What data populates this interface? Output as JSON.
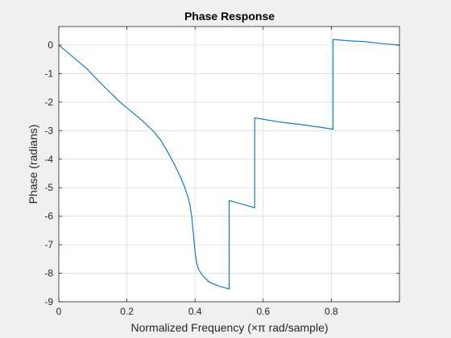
{
  "chart_data": {
    "type": "line",
    "title": "Phase Response",
    "xlabel": "Normalized Frequency (×π rad/sample)",
    "ylabel": "Phase (radians)",
    "xlim": [
      0,
      1
    ],
    "ylim": [
      -9,
      0.65
    ],
    "grid": true,
    "x_ticks": [
      "0",
      "0.2",
      "0.4",
      "0.6",
      "0.8"
    ],
    "x_tick_values": [
      0,
      0.2,
      0.4,
      0.6,
      0.8
    ],
    "y_ticks": [
      "0",
      "-1",
      "-2",
      "-3",
      "-4",
      "-5",
      "-6",
      "-7",
      "-8",
      "-9"
    ],
    "y_tick_values": [
      0,
      -1,
      -2,
      -3,
      -4,
      -5,
      -6,
      -7,
      -8,
      -9
    ],
    "series": [
      {
        "color": "#0072bd",
        "x": [
          0,
          0.02,
          0.05,
          0.08,
          0.1,
          0.12,
          0.15,
          0.18,
          0.2,
          0.22,
          0.25,
          0.28,
          0.3,
          0.32,
          0.34,
          0.36,
          0.37,
          0.38,
          0.385,
          0.39,
          0.395,
          0.4,
          0.405,
          0.41,
          0.42,
          0.44,
          0.47,
          0.5,
          0.5,
          0.53,
          0.575,
          0.575,
          0.6,
          0.65,
          0.7,
          0.75,
          0.805,
          0.805,
          0.85,
          0.9,
          0.95,
          1.0
        ],
        "y": [
          0,
          -0.2,
          -0.5,
          -0.8,
          -1.05,
          -1.3,
          -1.65,
          -2.0,
          -2.2,
          -2.4,
          -2.7,
          -3.05,
          -3.35,
          -3.75,
          -4.2,
          -4.7,
          -5.0,
          -5.35,
          -5.6,
          -6.0,
          -6.6,
          -7.25,
          -7.65,
          -7.85,
          -8.05,
          -8.3,
          -8.45,
          -8.55,
          -5.45,
          -5.55,
          -5.7,
          -2.55,
          -2.6,
          -2.7,
          -2.77,
          -2.85,
          -2.95,
          0.2,
          0.15,
          0.12,
          0.05,
          0.0
        ]
      }
    ]
  }
}
